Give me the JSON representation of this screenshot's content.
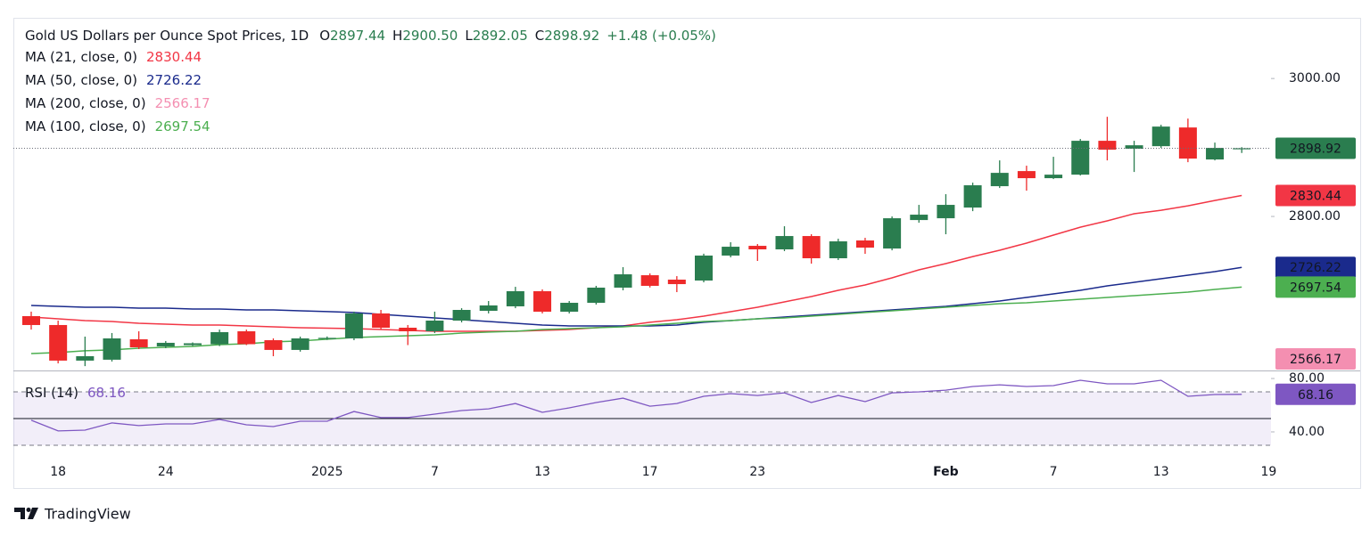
{
  "chart_data": {
    "type": "candlestick",
    "title": "Gold US Dollars per Ounce Spot Prices, 1D",
    "ohlc_header": [
      {
        "key": "O",
        "value": "2897.44"
      },
      {
        "key": "H",
        "value": "2900.50"
      },
      {
        "key": "L",
        "value": "2892.05"
      },
      {
        "key": "C",
        "value": "2898.92"
      }
    ],
    "change": "+1.48 (+0.05%)",
    "categories": [
      null,
      "18",
      null,
      null,
      null,
      "24",
      null,
      null,
      null,
      null,
      null,
      "2025",
      null,
      null,
      null,
      "7",
      null,
      null,
      null,
      "13",
      null,
      null,
      null,
      "17",
      null,
      null,
      null,
      "23",
      null,
      null,
      null,
      null,
      null,
      null,
      "Feb",
      null,
      null,
      null,
      "7",
      null,
      null,
      null,
      "13",
      null,
      null,
      null,
      "19"
    ],
    "open": [
      2655.5,
      2642.6,
      2591.0,
      2592.3,
      2621.9,
      2611.6,
      2613.5,
      2614.8,
      2633.5,
      2620.6,
      2606.5,
      2623.2,
      2623.2,
      2659.4,
      2638.7,
      2633.5,
      2649.0,
      2663.2,
      2669.7,
      2691.6,
      2661.9,
      2674.8,
      2696.8,
      2714.8,
      2708.4,
      2707.1,
      2743.3,
      2757.4,
      2752.3,
      2771.6,
      2739.4,
      2765.2,
      2753.5,
      2794.8,
      2797.4,
      2812.9,
      2843.9,
      2865.8,
      2855.5,
      2860.6,
      2909.7,
      2898.1,
      2901.9,
      2929.0,
      2882.6,
      2897.44,
      null
    ],
    "high": [
      2662.0,
      2649.0,
      2625.8,
      2631.0,
      2633.5,
      2619.4,
      2617.4,
      2636.0,
      2636.0,
      2623.2,
      2625.8,
      2626.0,
      2662.0,
      2664.5,
      2642.6,
      2662.0,
      2667.0,
      2677.4,
      2698.0,
      2694.2,
      2677.4,
      2699.4,
      2726.5,
      2717.4,
      2713.5,
      2746.0,
      2762.6,
      2760.0,
      2785.8,
      2774.2,
      2767.7,
      2769.0,
      2800.0,
      2816.8,
      2832.3,
      2849.0,
      2881.3,
      2873.6,
      2886.5,
      2912.3,
      2944.5,
      2909.7,
      2932.9,
      2941.9,
      2907.1,
      2900.5,
      null
    ],
    "low": [
      2636.0,
      2587.0,
      2583.0,
      2589.7,
      2607.7,
      2609.0,
      2612.2,
      2612.0,
      2613.5,
      2597.4,
      2604.0,
      2621.0,
      2620.6,
      2636.0,
      2613.5,
      2631.0,
      2646.4,
      2659.4,
      2667.0,
      2659.4,
      2659.4,
      2672.3,
      2692.9,
      2697.0,
      2690.3,
      2704.5,
      2740.7,
      2735.5,
      2749.7,
      2731.6,
      2736.8,
      2745.8,
      2750.9,
      2790.9,
      2774.2,
      2807.7,
      2841.3,
      2837.4,
      2854.2,
      2859.4,
      2881.3,
      2864.5,
      2899.4,
      2878.7,
      2881.3,
      2892.05,
      null
    ],
    "close": [
      2642.6,
      2591.0,
      2597.4,
      2623.2,
      2610.3,
      2616.8,
      2616.1,
      2632.3,
      2614.8,
      2606.5,
      2623.2,
      2624.0,
      2659.4,
      2638.7,
      2633.5,
      2649.0,
      2664.5,
      2671.0,
      2691.6,
      2661.9,
      2674.8,
      2696.8,
      2716.1,
      2699.4,
      2701.9,
      2743.3,
      2756.1,
      2752.3,
      2771.6,
      2739.4,
      2763.9,
      2754.8,
      2797.4,
      2802.6,
      2816.8,
      2845.2,
      2863.2,
      2855.5,
      2860.6,
      2909.7,
      2896.8,
      2903.2,
      2930.3,
      2883.9,
      2899.4,
      2898.92,
      null
    ],
    "up_color": "#2a7d4f",
    "down_color": "#ee2a2a",
    "overlays": [
      {
        "name": "MA (21, close, 0)",
        "color": "#f23645",
        "last": 2830.44,
        "values": [
          2654.2,
          2651.6,
          2649.0,
          2647.7,
          2645.2,
          2643.9,
          2642.6,
          2642.6,
          2641.3,
          2640.0,
          2638.7,
          2638.0,
          2637.4,
          2636.1,
          2634.8,
          2633.5,
          2633.5,
          2633.5,
          2633.5,
          2634.8,
          2636.1,
          2638.7,
          2641.3,
          2646.5,
          2650.3,
          2655.5,
          2661.9,
          2668.4,
          2676.1,
          2683.9,
          2692.9,
          2700.6,
          2711.0,
          2722.6,
          2731.6,
          2741.9,
          2751.0,
          2761.3,
          2772.9,
          2784.5,
          2793.6,
          2803.9,
          2809.0,
          2815.5,
          2823.2,
          2830.44,
          null
        ]
      },
      {
        "name": "MA (50, close, 0)",
        "color": "#1a2a8c",
        "last": 2726.22,
        "values": [
          2671.0,
          2669.7,
          2668.4,
          2668.4,
          2667.1,
          2667.1,
          2665.8,
          2665.8,
          2664.5,
          2664.5,
          2663.2,
          2662.0,
          2660.7,
          2658.1,
          2655.5,
          2652.9,
          2650.3,
          2647.7,
          2645.2,
          2642.6,
          2641.3,
          2641.3,
          2641.3,
          2641.3,
          2642.6,
          2646.5,
          2649.0,
          2651.6,
          2654.2,
          2656.8,
          2659.4,
          2661.9,
          2664.5,
          2667.1,
          2669.7,
          2673.6,
          2677.4,
          2682.6,
          2687.7,
          2692.9,
          2699.4,
          2704.5,
          2709.7,
          2714.8,
          2720.0,
          2726.22,
          null
        ]
      },
      {
        "name": "MA (200, close, 0)",
        "color": "#f48fb1",
        "last": 2566.17
      },
      {
        "name": "MA (100, close, 0)",
        "color": "#4caf50",
        "last": 2697.54,
        "values": [
          2601.3,
          2602.6,
          2605.2,
          2606.5,
          2609.0,
          2610.3,
          2611.6,
          2614.2,
          2615.5,
          2618.1,
          2619.4,
          2622.0,
          2624.5,
          2625.8,
          2627.1,
          2628.4,
          2631.0,
          2632.3,
          2633.5,
          2636.1,
          2637.4,
          2638.7,
          2640.0,
          2642.6,
          2645.2,
          2647.7,
          2649.0,
          2651.6,
          2652.9,
          2655.5,
          2658.1,
          2660.7,
          2663.2,
          2665.8,
          2668.4,
          2671.0,
          2673.6,
          2674.8,
          2677.4,
          2680.0,
          2682.6,
          2685.2,
          2687.7,
          2690.3,
          2694.2,
          2697.54,
          null
        ]
      }
    ],
    "ylim": [
      2578,
      3088
    ],
    "yticks": [
      {
        "value": 2800,
        "label": "2800.00"
      },
      {
        "value": 3000,
        "label": "3000.00"
      }
    ],
    "indicator": {
      "name": "RSI (14)",
      "color": "#7e57c2",
      "last": 68.16,
      "values": [
        48.7,
        40.7,
        41.3,
        46.7,
        44.7,
        46.0,
        46.0,
        49.3,
        45.3,
        44.0,
        48.0,
        48.0,
        55.3,
        50.7,
        50.7,
        53.3,
        56.0,
        57.3,
        61.3,
        54.7,
        58.0,
        62.0,
        65.3,
        59.3,
        61.3,
        66.7,
        68.7,
        67.3,
        69.3,
        62.0,
        67.3,
        62.7,
        69.3,
        70.0,
        71.3,
        74.0,
        75.3,
        74.0,
        74.7,
        78.7,
        76.0,
        76.0,
        78.7,
        66.7,
        68.0,
        68.16,
        null
      ],
      "ylim": [
        23.3,
        84.7
      ],
      "yticks": [
        {
          "value": 40,
          "label": "40.00"
        },
        {
          "value": 80,
          "label": "80.00"
        }
      ],
      "bands": {
        "upper": 70,
        "middle": 50,
        "lower": 30
      }
    }
  },
  "brand": "TradingView"
}
